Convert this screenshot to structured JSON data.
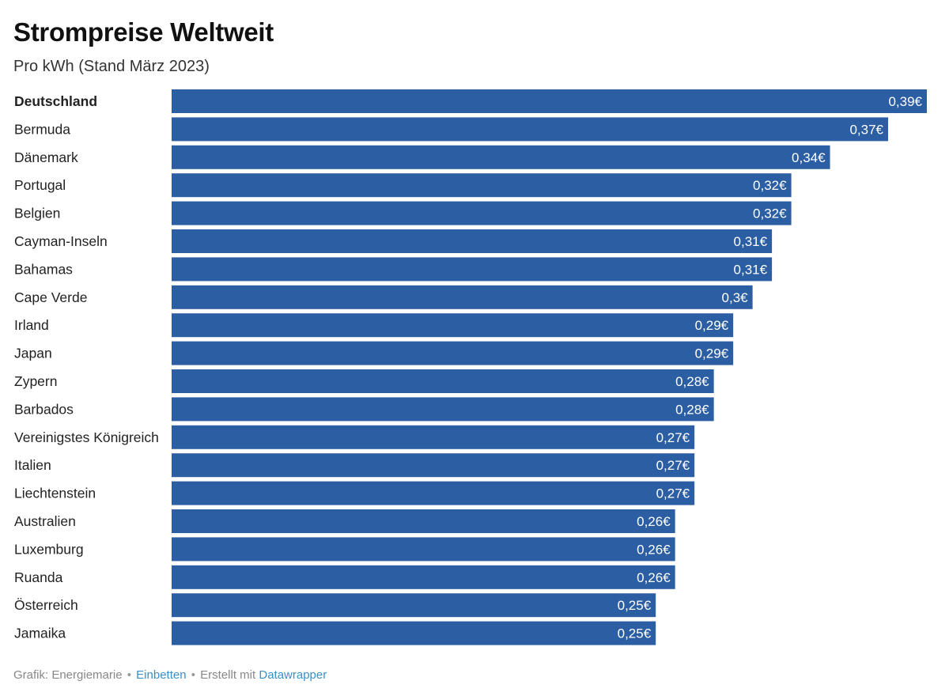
{
  "chart_data": {
    "type": "bar",
    "orientation": "horizontal",
    "title": "Strompreise Weltweit",
    "subtitle": "Pro kWh (Stand März 2023)",
    "xlabel": "",
    "ylabel": "",
    "xlim": [
      0,
      0.39
    ],
    "grid": false,
    "legend": "none",
    "highlight": "Deutschland",
    "bar_color": "#2c5ea3",
    "categories": [
      "Deutschland",
      "Bermuda",
      "Dänemark",
      "Portugal",
      "Belgien",
      "Cayman-Inseln",
      "Bahamas",
      "Cape Verde",
      "Irland",
      "Japan",
      "Zypern",
      "Barbados",
      "Vereinigstes Königreich",
      "Italien",
      "Liechtenstein",
      "Australien",
      "Luxemburg",
      "Ruanda",
      "Österreich",
      "Jamaika"
    ],
    "values": [
      0.39,
      0.37,
      0.34,
      0.32,
      0.32,
      0.31,
      0.31,
      0.3,
      0.29,
      0.29,
      0.28,
      0.28,
      0.27,
      0.27,
      0.27,
      0.26,
      0.26,
      0.26,
      0.25,
      0.25
    ],
    "value_labels": [
      "0,39€",
      "0,37€",
      "0,34€",
      "0,32€",
      "0,32€",
      "0,31€",
      "0,31€",
      "0,3€",
      "0,29€",
      "0,29€",
      "0,28€",
      "0,28€",
      "0,27€",
      "0,27€",
      "0,27€",
      "0,26€",
      "0,26€",
      "0,26€",
      "0,25€",
      "0,25€"
    ]
  },
  "footer": {
    "prefix": "Grafik: Energiemarie",
    "separator": "•",
    "embed_link": "Einbetten",
    "made_with": "Erstellt mit",
    "tool_link": "Datawrapper"
  },
  "colors": {
    "bar": "#2c5ea3",
    "link": "#3a8fc8"
  }
}
